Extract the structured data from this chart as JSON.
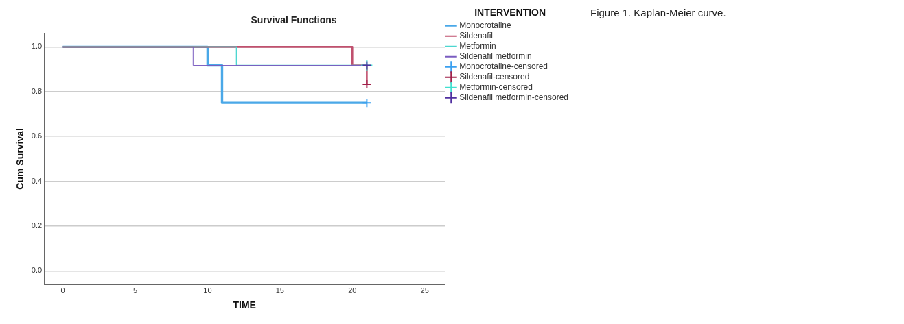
{
  "chart_data": {
    "type": "step",
    "title": "Survival Functions",
    "xlabel": "TIME",
    "ylabel": "Cum Survival",
    "legend_title": "INTERVENTION",
    "xlim": [
      -1.3,
      26.4
    ],
    "xticks": [
      0,
      5,
      10,
      15,
      20,
      25
    ],
    "ylim": [
      -0.06,
      1.06
    ],
    "yticks": [
      {
        "value": 0,
        "label": "0.0"
      },
      {
        "value": 0.2,
        "label": "0.2"
      },
      {
        "value": 0.4,
        "label": "0.4"
      },
      {
        "value": 0.6,
        "label": "0.6"
      },
      {
        "value": 0.8,
        "label": "0.8"
      },
      {
        "value": 1,
        "label": "1.0"
      }
    ],
    "grid": "y",
    "legend": "right",
    "series": [
      {
        "name": "Monocrotaline",
        "type": "step",
        "marker": "none",
        "color": "#4aa8e8",
        "x": [
          0,
          10,
          11,
          21
        ],
        "values": [
          1,
          0.917,
          0.75,
          0.75
        ]
      },
      {
        "name": "Sildenafil",
        "type": "step",
        "marker": "none",
        "color": "#c0506e",
        "x": [
          0,
          20,
          21
        ],
        "values": [
          1,
          0.917,
          0.833
        ]
      },
      {
        "name": "Metformin",
        "type": "step",
        "marker": "none",
        "color": "#4dd6d0",
        "x": [
          0,
          12,
          21
        ],
        "values": [
          1,
          0.917,
          0.917
        ]
      },
      {
        "name": "Sildenafil metformin",
        "type": "step",
        "marker": "none",
        "color": "#7a5cc0",
        "x": [
          0,
          9,
          21
        ],
        "values": [
          1,
          0.917,
          0.917
        ]
      },
      {
        "name": "Monocrotaline-censored",
        "type": "scatter",
        "marker": "cross",
        "color": "#3aa0f0",
        "x": [
          21
        ],
        "values": [
          0.75
        ]
      },
      {
        "name": "Sildenafil-censored",
        "type": "scatter",
        "marker": "cross",
        "color": "#a0204a",
        "x": [
          21
        ],
        "values": [
          0.833
        ]
      },
      {
        "name": "Metformin-censored",
        "type": "scatter",
        "marker": "cross",
        "color": "#40e0d0",
        "x": [
          21
        ],
        "values": [
          0.917
        ]
      },
      {
        "name": "Sildenafil metformin-censored",
        "type": "scatter",
        "marker": "cross",
        "color": "#5030a0",
        "x": [
          21
        ],
        "values": [
          0.917
        ]
      }
    ],
    "annotations": [
      "Figure 1. Kaplan-Meier curve."
    ]
  }
}
